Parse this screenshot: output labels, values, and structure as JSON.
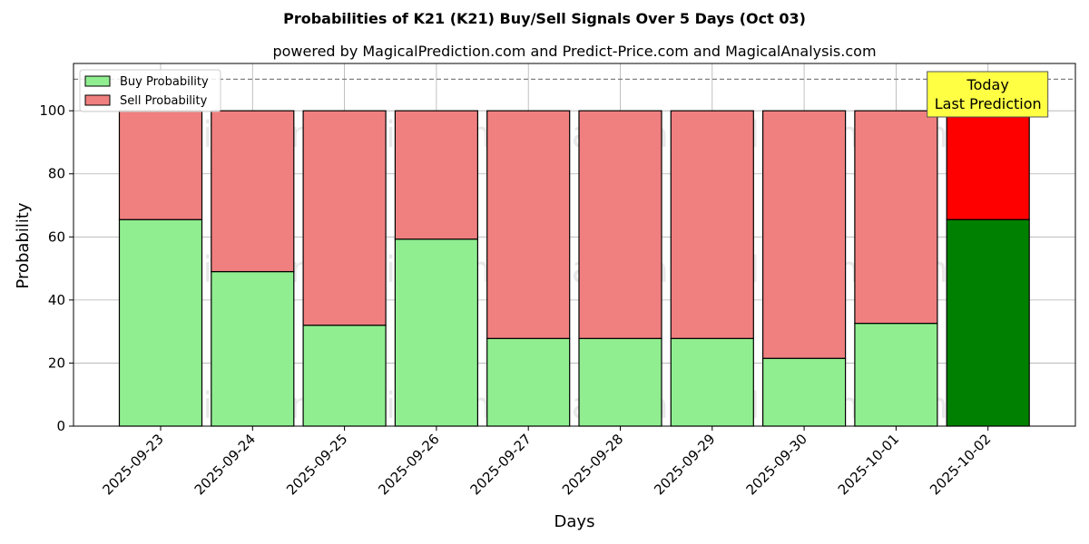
{
  "chart_data": {
    "type": "bar",
    "stacked": true,
    "title": "Probabilities of K21 (K21) Buy/Sell Signals Over 5 Days (Oct 03)",
    "subtitle": "powered by MagicalPrediction.com and Predict-Price.com and MagicalAnalysis.com",
    "xlabel": "Days",
    "ylabel": "Probability",
    "ylim": [
      0,
      115
    ],
    "yticks": [
      0,
      20,
      40,
      60,
      80,
      100
    ],
    "grid": true,
    "legend_position": "top-left",
    "categories": [
      "2025-09-23",
      "2025-09-24",
      "2025-09-25",
      "2025-09-26",
      "2025-09-27",
      "2025-09-28",
      "2025-09-29",
      "2025-09-30",
      "2025-10-01",
      "2025-10-02"
    ],
    "series": [
      {
        "name": "Buy Probability",
        "color": "#90ee90",
        "highlight_color": "#008000",
        "values": [
          65.5,
          49.0,
          32.0,
          59.3,
          27.8,
          27.8,
          27.8,
          21.5,
          32.6,
          65.5
        ]
      },
      {
        "name": "Sell Probability",
        "color": "#f08080",
        "highlight_color": "#ff0000",
        "values": [
          34.5,
          51.0,
          68.0,
          40.7,
          72.2,
          72.2,
          72.2,
          78.5,
          67.4,
          34.5
        ]
      }
    ],
    "highlight_index": 9,
    "reference_line": {
      "y": 110,
      "style": "dashed",
      "color": "#808080"
    },
    "annotation": {
      "lines": [
        "Today",
        "Last Prediction"
      ],
      "background": "#ffff44"
    },
    "watermarks": [
      "MagicalAnalysis.com",
      "MagicalPrediction.com"
    ]
  }
}
